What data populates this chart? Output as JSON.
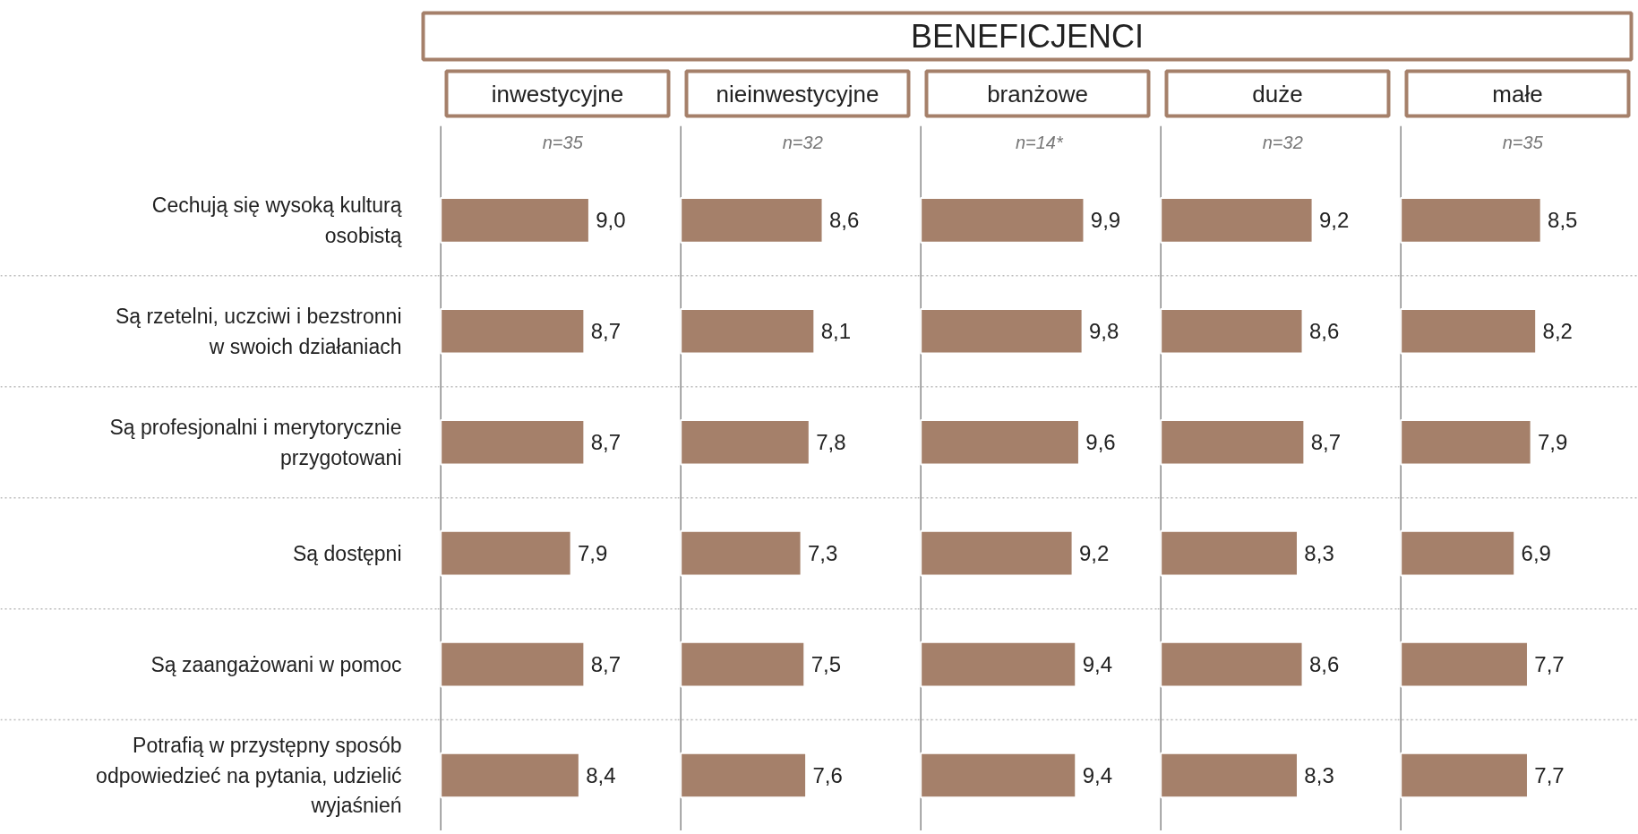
{
  "chart_data": [
    {
      "type": "other",
      "title": "BENEFICJENCI"
    },
    {
      "type": "bar",
      "orientation": "horizontal",
      "subtitle": "inwestycyjne",
      "categories": [
        "Cechują się wysoką kulturą\nosobistą",
        "Są rzetelni, uczciwi i bezstronni\nw swoich działaniach",
        "Są profesjonalni i merytorycznie\nprzygotowani",
        "Są dostępni",
        "Są zaangażowani w pomoc",
        "Potrafią w przystępny sposób\nodpowiedzieć na pytania, udzielić\nwyjaśnień"
      ],
      "values": [
        9.0,
        8.7,
        8.7,
        7.9,
        8.7,
        8.4
      ],
      "value_labels": [
        "9,0",
        "8,7",
        "8,7",
        "7,9",
        "8,7",
        "8,4"
      ],
      "color": "#a5806a",
      "annotations": [
        "n=35"
      ],
      "tick_labels": "y",
      "grid": "y"
    },
    {
      "type": "bar",
      "orientation": "horizontal",
      "subtitle": "nieinwestycyjne",
      "categories": [
        null,
        null,
        null,
        null,
        null,
        null
      ],
      "values": [
        8.6,
        8.1,
        7.8,
        7.3,
        7.5,
        7.6
      ],
      "value_labels": [
        "8,6",
        "8,1",
        "7,8",
        "7,3",
        "7,5",
        "7,6"
      ],
      "color": "#a5806a",
      "annotations": [
        "n=32"
      ],
      "grid": "y"
    },
    {
      "type": "bar",
      "orientation": "horizontal",
      "subtitle": "branżowe",
      "categories": [
        null,
        null,
        null,
        null,
        null,
        null
      ],
      "values": [
        9.9,
        9.8,
        9.6,
        9.2,
        9.4,
        9.4
      ],
      "value_labels": [
        "9,9",
        "9,8",
        "9,6",
        "9,2",
        "9,4",
        "9,4"
      ],
      "color": "#a5806a",
      "annotations": [
        "n=14*"
      ],
      "grid": "y"
    },
    {
      "type": "bar",
      "orientation": "horizontal",
      "subtitle": "duże",
      "categories": [
        null,
        null,
        null,
        null,
        null,
        null
      ],
      "values": [
        9.2,
        8.6,
        8.7,
        8.3,
        8.6,
        8.3
      ],
      "value_labels": [
        "9,2",
        "8,6",
        "8,7",
        "8,3",
        "8,6",
        "8,3"
      ],
      "color": "#a5806a",
      "annotations": [
        "n=32"
      ],
      "grid": "y"
    },
    {
      "type": "bar",
      "orientation": "horizontal",
      "subtitle": "małe",
      "categories": [
        null,
        null,
        null,
        null,
        null,
        null
      ],
      "values": [
        8.5,
        8.2,
        7.9,
        6.9,
        7.7,
        7.7
      ],
      "value_labels": [
        "8,5",
        "8,2",
        "7,9",
        "6,9",
        "7,7",
        "7,7"
      ],
      "color": "#a5806a",
      "annotations": [
        "n=35"
      ],
      "grid": "y"
    }
  ]
}
